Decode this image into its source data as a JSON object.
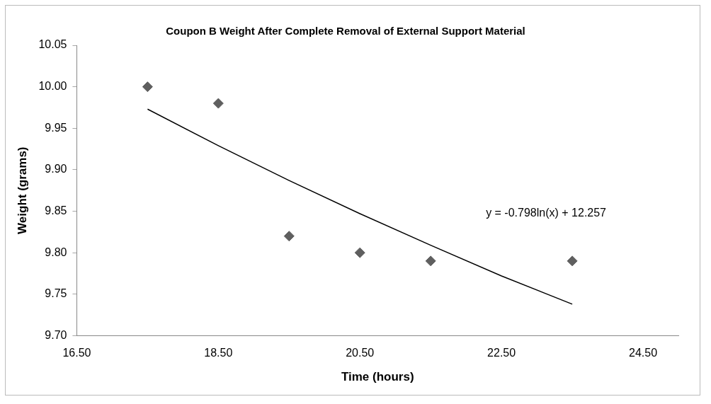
{
  "chart_data": {
    "type": "scatter",
    "title": "Coupon B Weight After Complete Removal of External Support Material",
    "xlabel": "Time (hours)",
    "ylabel": "Weight (grams)",
    "x": [
      17.5,
      18.5,
      19.5,
      20.5,
      21.5,
      23.5
    ],
    "series": [
      {
        "color": "#5f5f5f",
        "values": [
          10.0,
          9.98,
          9.82,
          9.8,
          9.79,
          9.79
        ],
        "marker": "diamond"
      },
      {
        "type": "line",
        "color": "#000000",
        "x": [
          17.5,
          18.5,
          19.5,
          20.5,
          21.5,
          22.5,
          23.5
        ],
        "values": [
          9.973,
          9.929,
          9.887,
          9.847,
          9.809,
          9.772,
          9.738
        ],
        "marker": "none"
      }
    ],
    "xlim": [
      16.5,
      25.0
    ],
    "xticks": [
      {
        "value": 16.5,
        "label": "16.50"
      },
      {
        "value": 18.5,
        "label": "18.50"
      },
      {
        "value": 20.5,
        "label": "20.50"
      },
      {
        "value": 22.5,
        "label": "22.50"
      },
      {
        "value": 24.5,
        "label": "24.50"
      }
    ],
    "ylim": [
      9.7,
      10.05
    ],
    "yticks": [
      {
        "value": 9.7,
        "label": "9.70"
      },
      {
        "value": 9.75,
        "label": "9.75"
      },
      {
        "value": 9.8,
        "label": "9.80"
      },
      {
        "value": 9.85,
        "label": "9.85"
      },
      {
        "value": 9.9,
        "label": "9.90"
      },
      {
        "value": 9.95,
        "label": "9.95"
      },
      {
        "value": 10.0,
        "label": "10.00"
      },
      {
        "value": 10.05,
        "label": "10.05"
      }
    ],
    "annotations": [
      "y = -0.798ln(x) + 12.257"
    ],
    "grid": false,
    "legend": false
  }
}
